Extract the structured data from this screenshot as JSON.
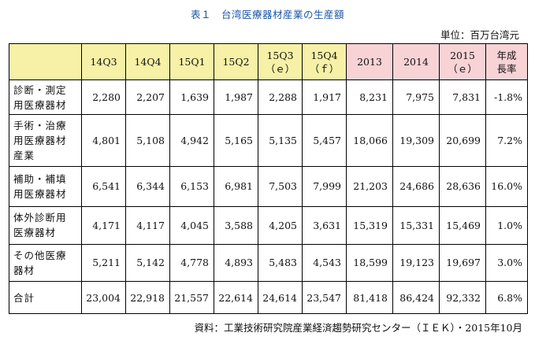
{
  "title": "表１　台湾医療器材産業の生産額",
  "unit": "単位：百万台湾元",
  "columns": [
    {
      "label": "14Q3",
      "highlight": false
    },
    {
      "label": "14Q4",
      "highlight": false
    },
    {
      "label": "15Q1",
      "highlight": false
    },
    {
      "label": "15Q2",
      "highlight": false
    },
    {
      "label": "15Q3\n（ｅ）",
      "highlight": false
    },
    {
      "label": "15Q4\n（ｆ）",
      "highlight": false
    },
    {
      "label": "2013",
      "highlight": true
    },
    {
      "label": "2014",
      "highlight": true
    },
    {
      "label": "2015\n（ｅ）",
      "highlight": true
    },
    {
      "label": "年成\n長率",
      "highlight": true
    }
  ],
  "rows": [
    {
      "label": "診断・測定\n用医療器材",
      "values": [
        "2,280",
        "2,207",
        "1,639",
        "1,987",
        "2,288",
        "1,917",
        "8,231",
        "7,975",
        "7,831",
        "-1.8%"
      ]
    },
    {
      "label": "手術・治療\n用医療器材\n産業",
      "values": [
        "4,801",
        "5,108",
        "4,942",
        "5,165",
        "5,135",
        "5,457",
        "18,066",
        "19,309",
        "20,699",
        "7.2%"
      ]
    },
    {
      "label": "補助・補填\n用医療器材",
      "values": [
        "6,541",
        "6,344",
        "6,153",
        "6,981",
        "7,503",
        "7,999",
        "21,203",
        "24,686",
        "28,636",
        "16.0%"
      ]
    },
    {
      "label": "体外診断用\n医療器材",
      "values": [
        "4,171",
        "4,117",
        "4,045",
        "3,588",
        "4,205",
        "3,631",
        "15,319",
        "15,331",
        "15,469",
        "1.0%"
      ]
    },
    {
      "label": "その他医療\n器材",
      "values": [
        "5,211",
        "5,142",
        "4,778",
        "4,893",
        "5,483",
        "4,543",
        "18,599",
        "19,123",
        "19,697",
        "3.0%"
      ]
    },
    {
      "label": "合計",
      "values": [
        "23,004",
        "22,918",
        "21,557",
        "22,614",
        "24,614",
        "23,547",
        "81,418",
        "86,424",
        "92,332",
        "6.8%"
      ]
    }
  ],
  "source": "資料：工業技術研究院産業経済趨勢研究センター（ＩＥＫ）・2015年10月",
  "colors": {
    "header_yellow": "#f6f1a6",
    "header_pink": "#f8d3d6",
    "title_blue": "#1a56a6"
  }
}
